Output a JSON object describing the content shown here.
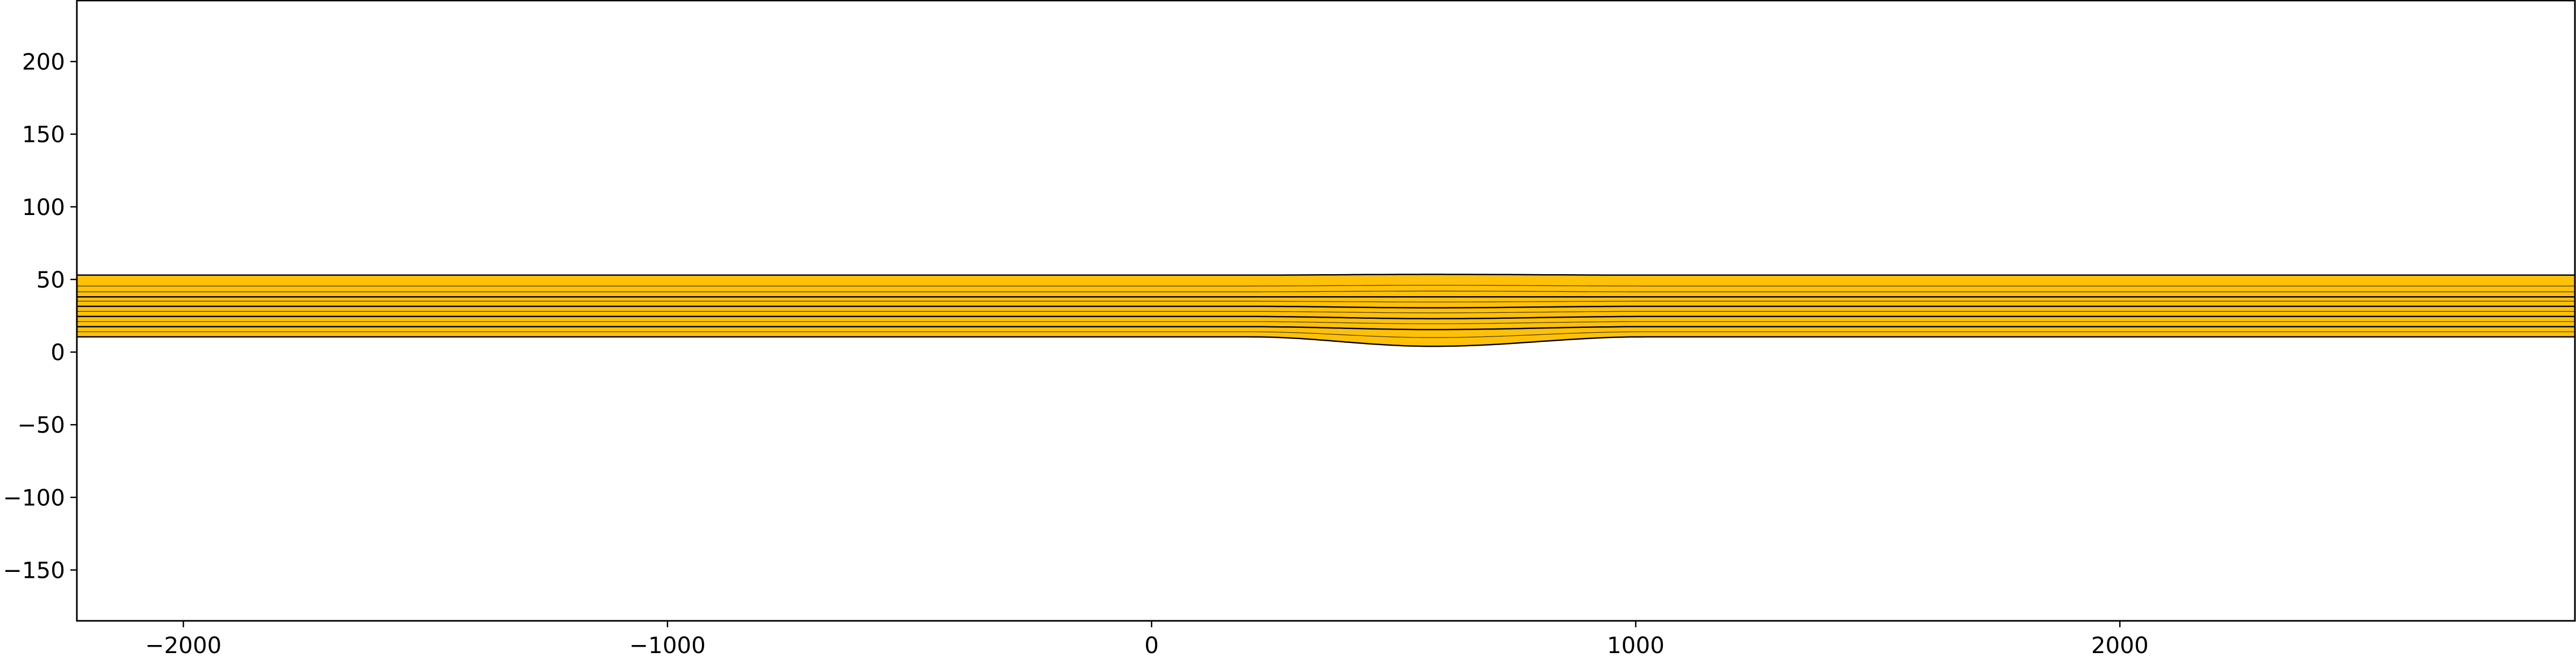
{
  "chart_data": {
    "type": "area",
    "title": "",
    "xlabel": "",
    "ylabel": "",
    "xlim": [
      -2220,
      2940
    ],
    "ylim": [
      -185,
      242
    ],
    "xticks": [
      {
        "value": -2000,
        "label": "−2000"
      },
      {
        "value": -1000,
        "label": "−1000"
      },
      {
        "value": 0,
        "label": "0"
      },
      {
        "value": 1000,
        "label": "1000"
      },
      {
        "value": 2000,
        "label": "2000"
      }
    ],
    "yticks": [
      {
        "value": 200,
        "label": "200"
      },
      {
        "value": 150,
        "label": "150"
      },
      {
        "value": 100,
        "label": "100"
      },
      {
        "value": 50,
        "label": "50"
      },
      {
        "value": 0,
        "label": "0"
      },
      {
        "value": -50,
        "label": "−50"
      },
      {
        "value": -100,
        "label": "−100"
      },
      {
        "value": -150,
        "label": "−150"
      }
    ],
    "grid": false,
    "fill_color": "#ffc107",
    "line_color": "#000000",
    "layer_boundaries": [
      {
        "far_value": 53,
        "bump_value": 53.5
      },
      {
        "far_value": 38,
        "bump_value": 38
      },
      {
        "far_value": 31.5,
        "bump_value": 30.5
      },
      {
        "far_value": 24.5,
        "bump_value": 23
      },
      {
        "far_value": 17.5,
        "bump_value": 15.5
      },
      {
        "far_value": 10.5,
        "bump_value": 4
      }
    ],
    "interior_lines": [
      {
        "far_value": 45.5,
        "bump_value": 46
      },
      {
        "far_value": 41.5,
        "bump_value": 42
      },
      {
        "far_value": 35,
        "bump_value": 34.5
      },
      {
        "far_value": 28,
        "bump_value": 27
      },
      {
        "far_value": 21,
        "bump_value": 19.5
      },
      {
        "far_value": 14,
        "bump_value": 10
      }
    ],
    "bump": {
      "center": 580,
      "start": 200,
      "end": 1020
    }
  }
}
